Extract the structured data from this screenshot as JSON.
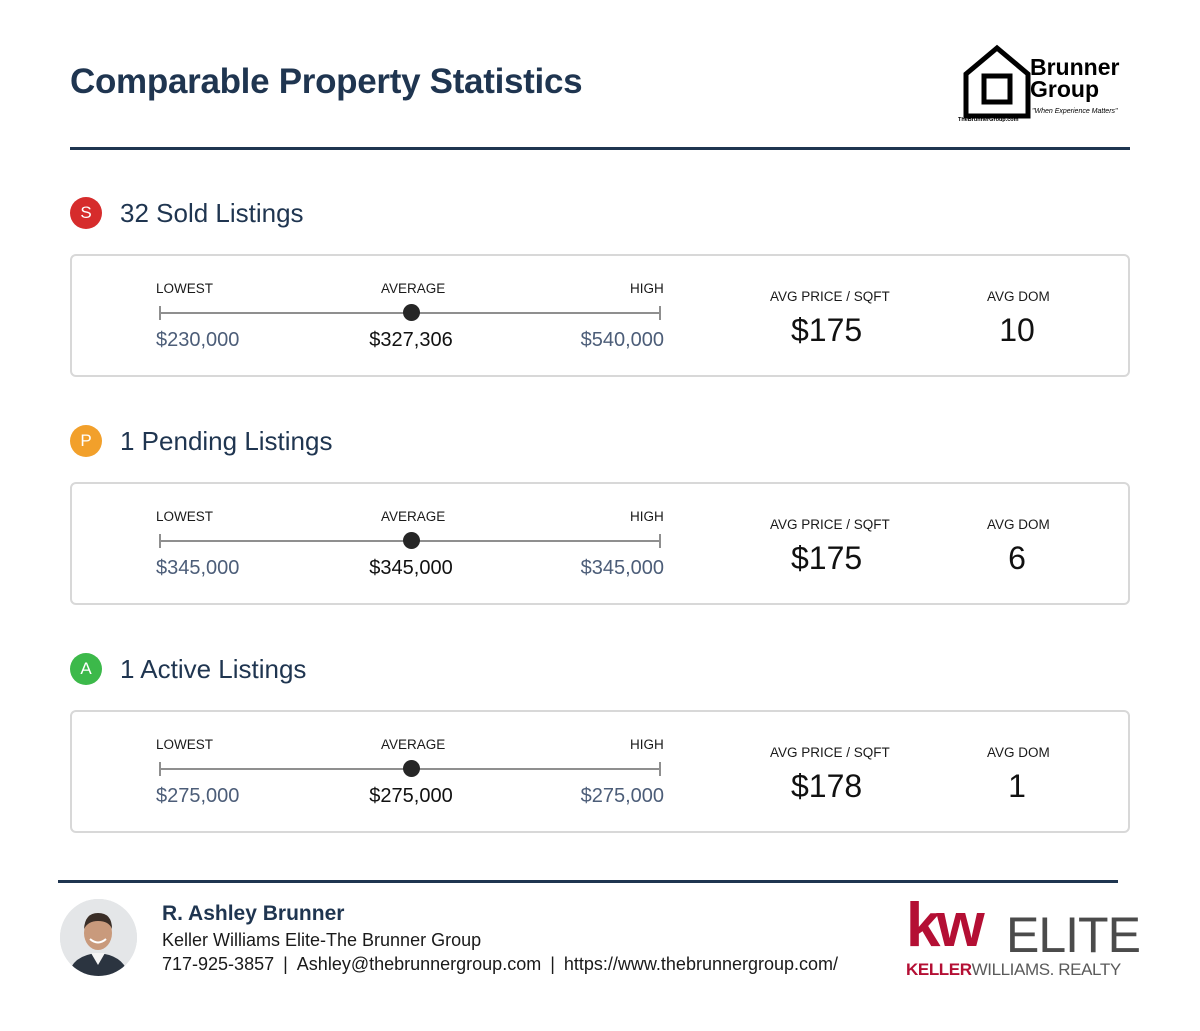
{
  "header": {
    "title": "Comparable Property Statistics",
    "logo": {
      "name_line1": "Brunner",
      "name_line2": "Group",
      "tagline": "\"When Experience Matters\"",
      "url": "TheBrunnerGroup.com"
    }
  },
  "labels": {
    "lowest": "LOWEST",
    "average": "AVERAGE",
    "high": "HIGH",
    "avg_price_sqft": "AVG PRICE / SQFT",
    "avg_dom": "AVG DOM"
  },
  "sections": [
    {
      "badge": "S",
      "badge_color": "#d62c2c",
      "title": "32 Sold Listings",
      "lowest": "$230,000",
      "average": "$327,306",
      "high": "$540,000",
      "avg_position": 0.5,
      "avg_price_sqft": "$175",
      "avg_dom": "10"
    },
    {
      "badge": "P",
      "badge_color": "#f2a02b",
      "title": "1 Pending Listings",
      "lowest": "$345,000",
      "average": "$345,000",
      "high": "$345,000",
      "avg_position": 0.5,
      "avg_price_sqft": "$175",
      "avg_dom": "6"
    },
    {
      "badge": "A",
      "badge_color": "#3cb94a",
      "title": "1 Active Listings",
      "lowest": "$275,000",
      "average": "$275,000",
      "high": "$275,000",
      "avg_position": 0.5,
      "avg_price_sqft": "$178",
      "avg_dom": "1"
    }
  ],
  "footer": {
    "agent_name": "R. Ashley Brunner",
    "company": "Keller Williams Elite-The Brunner Group",
    "phone": "717-925-3857",
    "email": "Ashley@thebrunnergroup.com",
    "website": "https://www.thebrunnergroup.com/",
    "separator": "|",
    "brand": {
      "kw": "kw",
      "elite": "ELITE",
      "keller": "KELLER",
      "williams": "WILLIAMS. REALTY",
      "accent": "#b40f34"
    }
  }
}
